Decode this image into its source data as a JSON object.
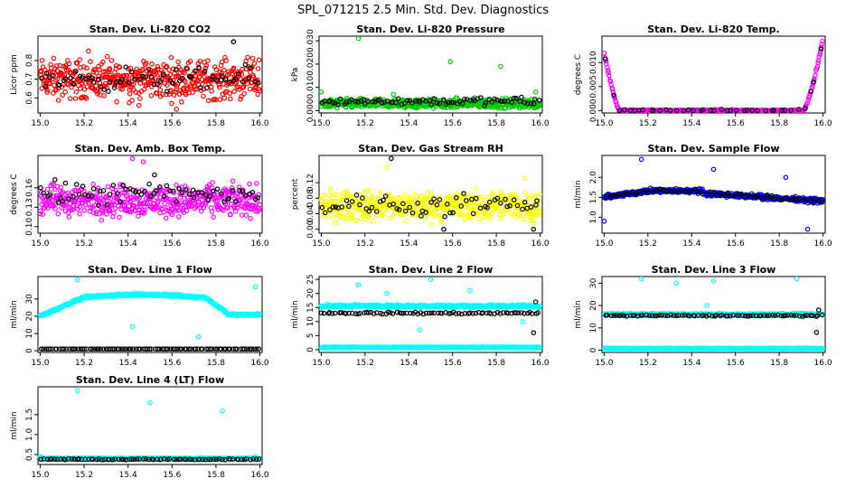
{
  "title": "SPL_071215  2.5 Min. Std. Dev. Diagnostics",
  "chart_data": [
    {
      "type": "scatter",
      "title": "Stan. Dev. Li-820 CO2",
      "ylabel": "Licor ppm",
      "xlim": [
        14.99,
        16.01
      ],
      "ylim": [
        0.52,
        0.93
      ],
      "xticks": [
        15.0,
        15.2,
        15.4,
        15.6,
        15.8,
        16.0
      ],
      "xtick_labels": [
        "15.0",
        "15.2",
        "15.4",
        "15.6",
        "15.8",
        "16.0"
      ],
      "yticks": [
        0.6,
        0.7,
        0.8
      ],
      "ytick_labels": [
        "0.6",
        "0.7",
        "0.8"
      ],
      "grid": false,
      "series": [
        {
          "color": "#ff0000",
          "band": [
            0.55,
            0.85,
            0.7
          ],
          "n": 480,
          "outliers": [
            [
              15.22,
              0.85
            ],
            [
              15.88,
              0.9
            ],
            [
              15.45,
              0.56
            ],
            [
              15.62,
              0.54
            ]
          ]
        },
        {
          "color": "#000000",
          "band": [
            0.62,
            0.8,
            0.7
          ],
          "n": 70,
          "outliers": [
            [
              15.88,
              0.9
            ]
          ]
        }
      ]
    },
    {
      "type": "scatter",
      "title": "Stan. Dev. Li-820 Pressure",
      "ylabel": "kPa",
      "xlim": [
        14.99,
        16.01
      ],
      "ylim": [
        -0.001,
        0.032
      ],
      "xticks": [
        15.0,
        15.2,
        15.4,
        15.6,
        15.8,
        16.0
      ],
      "xtick_labels": [
        "15.0",
        "15.2",
        "15.4",
        "15.6",
        "15.8",
        "16.0"
      ],
      "yticks": [
        0.0,
        0.01,
        0.02,
        0.03
      ],
      "ytick_labels": [
        "0.000",
        "0.010",
        "0.020",
        "0.030"
      ],
      "grid": false,
      "series": [
        {
          "color": "#00cc00",
          "band": [
            0.0,
            0.006,
            0.003
          ],
          "n": 520,
          "outliers": [
            [
              15.17,
              0.031
            ],
            [
              15.59,
              0.021
            ],
            [
              15.82,
              0.019
            ],
            [
              15.33,
              0.007
            ],
            [
              15.0,
              0.008
            ],
            [
              15.98,
              0.008
            ]
          ]
        },
        {
          "color": "#000000",
          "band": [
            0.001,
            0.006,
            0.004
          ],
          "n": 80,
          "outliers": []
        }
      ]
    },
    {
      "type": "scatter",
      "title": "Stan. Dev. Li-820 Temp.",
      "ylabel": "degrees C",
      "xlim": [
        14.99,
        16.01
      ],
      "ylim": [
        -0.0005,
        0.0155
      ],
      "xticks": [
        15.0,
        15.2,
        15.4,
        15.6,
        15.8,
        16.0
      ],
      "xtick_labels": [
        "15.0",
        "15.2",
        "15.4",
        "15.6",
        "15.8",
        "16.0"
      ],
      "yticks": [
        0.0,
        0.005,
        0.01
      ],
      "ytick_labels": [
        "0.000",
        "0.005",
        "0.010"
      ],
      "grid": false,
      "series": [
        {
          "color": "#ff00ff",
          "profile": "temp",
          "n": 320,
          "outliers": []
        },
        {
          "color": "#000000",
          "profile": "temp",
          "n": 40,
          "outliers": []
        }
      ]
    },
    {
      "type": "scatter",
      "title": "Stan. Dev. Amb. Box Temp.",
      "ylabel": "degrees C",
      "xlim": [
        14.99,
        16.01
      ],
      "ylim": [
        0.09,
        0.21
      ],
      "xticks": [
        15.0,
        15.2,
        15.4,
        15.6,
        15.8,
        16.0
      ],
      "xtick_labels": [
        "15.0",
        "15.2",
        "15.4",
        "15.6",
        "15.8",
        "16.0"
      ],
      "yticks": [
        0.1,
        0.13,
        0.16
      ],
      "ytick_labels": [
        "0.10",
        "0.13",
        "0.16"
      ],
      "grid": false,
      "series": [
        {
          "color": "#ff00ff",
          "band": [
            0.11,
            0.18,
            0.14
          ],
          "n": 460,
          "outliers": [
            [
              15.42,
              0.205
            ],
            [
              15.47,
              0.2
            ],
            [
              15.0,
              0.12
            ]
          ]
        },
        {
          "color": "#000000",
          "band": [
            0.12,
            0.175,
            0.15
          ],
          "n": 70,
          "outliers": [
            [
              15.52,
              0.18
            ]
          ]
        }
      ]
    },
    {
      "type": "scatter",
      "title": "Stan. Dev. Gas Stream RH",
      "ylabel": "percent",
      "xlim": [
        14.99,
        16.01
      ],
      "ylim": [
        -0.01,
        0.19
      ],
      "xticks": [
        15.0,
        15.2,
        15.4,
        15.6,
        15.8,
        16.0
      ],
      "xtick_labels": [
        "15.0",
        "15.2",
        "15.4",
        "15.6",
        "15.8",
        "16.0"
      ],
      "yticks": [
        0.0,
        0.04,
        0.08,
        0.12
      ],
      "ytick_labels": [
        "0.00",
        "0.04",
        "0.08",
        "0.12"
      ],
      "grid": false,
      "series": [
        {
          "color": "#ffff00",
          "band": [
            0.01,
            0.12,
            0.06
          ],
          "n": 480,
          "outliers": [
            [
              15.93,
              0.13
            ],
            [
              15.3,
              0.16
            ]
          ]
        },
        {
          "color": "#000000",
          "band": [
            0.02,
            0.1,
            0.06
          ],
          "n": 65,
          "outliers": [
            [
              15.32,
              0.182
            ],
            [
              15.56,
              0.0
            ],
            [
              15.97,
              0.0
            ]
          ]
        }
      ]
    },
    {
      "type": "scatter",
      "title": "Stan. Dev. Sample Flow",
      "ylabel": "ml/min",
      "xlim": [
        14.99,
        16.01
      ],
      "ylim": [
        0.6,
        2.55
      ],
      "xticks": [
        15.0,
        15.2,
        15.4,
        15.6,
        15.8,
        16.0
      ],
      "xtick_labels": [
        "15.0",
        "15.2",
        "15.4",
        "15.6",
        "15.8",
        "16.0"
      ],
      "yticks": [
        1.0,
        1.5,
        2.0
      ],
      "ytick_labels": [
        "1.0",
        "1.5",
        "2.0"
      ],
      "grid": false,
      "series": [
        {
          "color": "#0000ff",
          "profile": "sample",
          "n": 500,
          "outliers": [
            [
              15.17,
              2.45
            ],
            [
              15.5,
              2.2
            ],
            [
              15.83,
              2.0
            ],
            [
              15.0,
              0.9
            ],
            [
              15.93,
              0.7
            ]
          ]
        },
        {
          "color": "#000000",
          "profile": "sample",
          "n": 80,
          "outliers": []
        }
      ]
    },
    {
      "type": "scatter",
      "title": "Stan. Dev. Line 1 Flow",
      "ylabel": "ml/min",
      "xlim": [
        14.99,
        16.01
      ],
      "ylim": [
        -1,
        43
      ],
      "xticks": [
        15.0,
        15.2,
        15.4,
        15.6,
        15.8,
        16.0
      ],
      "xtick_labels": [
        "15.0",
        "15.2",
        "15.4",
        "15.6",
        "15.8",
        "16.0"
      ],
      "yticks": [
        0,
        10,
        20,
        30
      ],
      "ytick_labels": [
        "0",
        "10",
        "20",
        "30"
      ],
      "grid": false,
      "series": [
        {
          "color": "#00ffff",
          "profile": "line1",
          "n": 520,
          "outliers": [
            [
              15.17,
              41
            ],
            [
              15.42,
              14
            ],
            [
              15.72,
              8
            ],
            [
              15.98,
              37
            ]
          ]
        },
        {
          "color": "#000000",
          "flat": 1.0,
          "n": 95,
          "outliers": []
        }
      ]
    },
    {
      "type": "scatter",
      "title": "Stan. Dev. Line 2 Flow",
      "ylabel": "ml/min",
      "xlim": [
        14.99,
        16.01
      ],
      "ylim": [
        -1,
        26
      ],
      "xticks": [
        15.0,
        15.2,
        15.4,
        15.6,
        15.8,
        16.0
      ],
      "xtick_labels": [
        "15.0",
        "15.2",
        "15.4",
        "15.6",
        "15.8",
        "16.0"
      ],
      "yticks": [
        0,
        5,
        10,
        15,
        20,
        25
      ],
      "ytick_labels": [
        "0",
        "5",
        "10",
        "15",
        "20",
        "25"
      ],
      "grid": false,
      "series": [
        {
          "color": "#00ffff",
          "flat": 15.5,
          "jitter": 0.7,
          "n": 480,
          "outliers": [
            [
              15.17,
              23
            ],
            [
              15.3,
              20
            ],
            [
              15.5,
              25
            ],
            [
              15.68,
              21
            ],
            [
              15.45,
              7
            ],
            [
              15.92,
              10
            ]
          ]
        },
        {
          "color": "#00ffff",
          "flat": 0.8,
          "jitter": 0.3,
          "n": 480,
          "outliers": []
        },
        {
          "color": "#000000",
          "flat": 13,
          "jitter": 0.5,
          "n": 80,
          "outliers": [
            [
              15.98,
              17
            ],
            [
              15.97,
              6
            ]
          ]
        }
      ]
    },
    {
      "type": "scatter",
      "title": "Stan. Dev. Line 3 Flow",
      "ylabel": "ml/min",
      "xlim": [
        14.99,
        16.01
      ],
      "ylim": [
        -1,
        33
      ],
      "xticks": [
        15.0,
        15.2,
        15.4,
        15.6,
        15.8,
        16.0
      ],
      "xtick_labels": [
        "15.0",
        "15.2",
        "15.4",
        "15.6",
        "15.8",
        "16.0"
      ],
      "yticks": [
        0,
        10,
        20,
        30
      ],
      "ytick_labels": [
        "0",
        "10",
        "20",
        "30"
      ],
      "grid": false,
      "series": [
        {
          "color": "#00ffff",
          "flat": 16,
          "jitter": 0.8,
          "n": 480,
          "outliers": [
            [
              15.17,
              32
            ],
            [
              15.33,
              30
            ],
            [
              15.5,
              31
            ],
            [
              15.47,
              20
            ],
            [
              15.88,
              32
            ]
          ]
        },
        {
          "color": "#00ffff",
          "flat": 0.8,
          "jitter": 0.3,
          "n": 480,
          "outliers": []
        },
        {
          "color": "#000000",
          "flat": 15.5,
          "jitter": 0.5,
          "n": 80,
          "outliers": [
            [
              15.98,
              18
            ],
            [
              15.97,
              8
            ]
          ]
        }
      ]
    },
    {
      "type": "scatter",
      "title": "Stan. Dev. Line 4 (LT) Flow",
      "ylabel": "ml/min",
      "xlim": [
        14.99,
        16.01
      ],
      "ylim": [
        0.25,
        2.2
      ],
      "xticks": [
        15.0,
        15.2,
        15.4,
        15.6,
        15.8,
        16.0
      ],
      "xtick_labels": [
        "15.0",
        "15.2",
        "15.4",
        "15.6",
        "15.8",
        "16.0"
      ],
      "yticks": [
        0.5,
        1.0,
        1.5
      ],
      "ytick_labels": [
        "0.5",
        "1.0",
        "1.5"
      ],
      "grid": false,
      "series": [
        {
          "color": "#00ffff",
          "flat": 0.4,
          "jitter": 0.03,
          "n": 480,
          "outliers": [
            [
              15.17,
              2.1
            ],
            [
              15.5,
              1.8
            ],
            [
              15.83,
              1.6
            ],
            [
              15.0,
              0.45
            ],
            [
              15.98,
              0.45
            ]
          ]
        },
        {
          "color": "#000000",
          "flat": 0.38,
          "jitter": 0.02,
          "n": 80,
          "outliers": []
        }
      ]
    }
  ]
}
